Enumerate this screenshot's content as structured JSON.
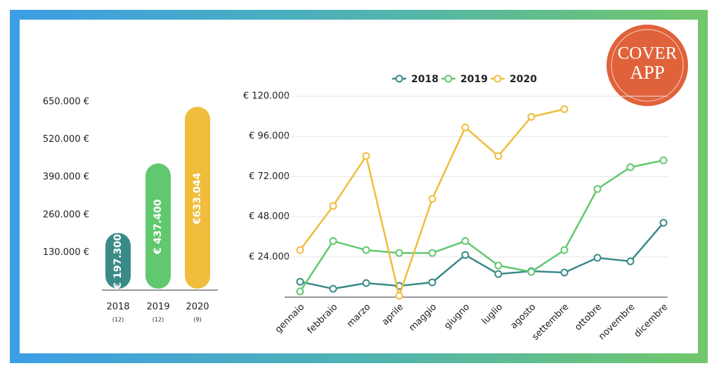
{
  "chart_data": [
    {
      "type": "bar",
      "categories": [
        "2018",
        "2019",
        "2020"
      ],
      "sublabels": [
        "(12)",
        "(12)",
        "(9)"
      ],
      "values": [
        197300,
        437400,
        633044
      ],
      "value_labels": [
        "€ 197.300",
        "€ 437.400",
        "€633.044"
      ],
      "colors": [
        "#3a8a88",
        "#62c86f",
        "#f0bd3c"
      ],
      "ylim": [
        0,
        650000
      ],
      "yticks": [
        {
          "value": 130000,
          "label": "130.000 €"
        },
        {
          "value": 260000,
          "label": "260.000 €"
        },
        {
          "value": 390000,
          "label": "390.000 €"
        },
        {
          "value": 520000,
          "label": "520.000 €"
        },
        {
          "value": 650000,
          "label": "650.000 €"
        }
      ]
    },
    {
      "type": "line",
      "categories": [
        "gennaio",
        "febbraio",
        "marzo",
        "aprile",
        "maggio",
        "giugno",
        "luglio",
        "agosto",
        "settembre",
        "ottobre",
        "novembre",
        "dicembre"
      ],
      "series": [
        {
          "name": "2018",
          "color": "#3a8a88",
          "values": [
            9200,
            5000,
            8400,
            6700,
            8800,
            25200,
            13800,
            15500,
            14700,
            23500,
            21400,
            44400
          ]
        },
        {
          "name": "2019",
          "color": "#62c86f",
          "values": [
            3400,
            33500,
            28100,
            26400,
            26400,
            33500,
            18900,
            15100,
            28100,
            64600,
            77600,
            81700
          ]
        },
        {
          "name": "2020",
          "color": "#f0bd3c",
          "values": [
            28100,
            54500,
            84300,
            800,
            58700,
            101400,
            84300,
            107700,
            112300,
            null,
            null,
            null
          ]
        }
      ],
      "ylim": [
        0,
        120000
      ],
      "yticks": [
        {
          "value": 24000,
          "label": "€ 24.000"
        },
        {
          "value": 48000,
          "label": "€ 48.000"
        },
        {
          "value": 72000,
          "label": "€ 72.000"
        },
        {
          "value": 96000,
          "label": "€ 96.000"
        },
        {
          "value": 120000,
          "label": "€ 120.000"
        }
      ],
      "grid": true
    }
  ],
  "logo": {
    "line1": "COVER",
    "line2": "APP"
  }
}
